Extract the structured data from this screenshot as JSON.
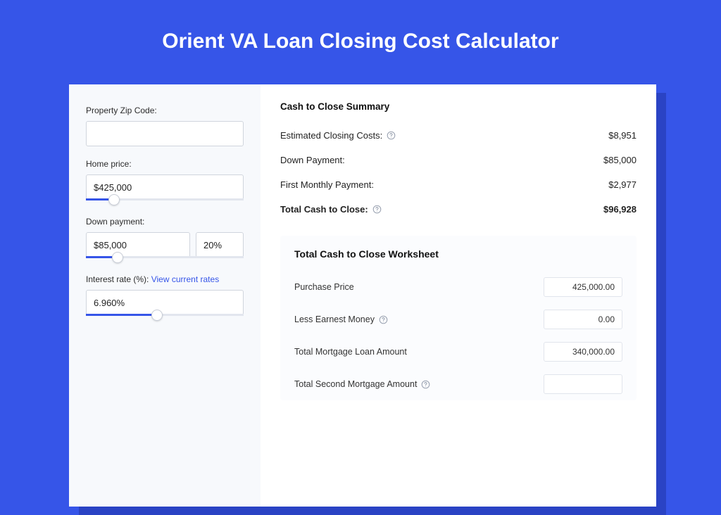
{
  "title": "Orient VA Loan Closing Cost Calculator",
  "colors": {
    "page_bg": "#3655e8",
    "panel_bg": "#ffffff",
    "left_bg": "#f7f9fc",
    "shadow_bg": "#2a43c4",
    "link": "#3655e8"
  },
  "left": {
    "zip_label": "Property Zip Code:",
    "zip_value": "",
    "home_price_label": "Home price:",
    "home_price_value": "$425,000",
    "home_price_slider": {
      "fill_pct": 18,
      "thumb_pct": 18
    },
    "down_payment_label": "Down payment:",
    "down_payment_value": "$85,000",
    "down_payment_pct": "20%",
    "down_payment_slider": {
      "fill_pct": 20,
      "thumb_pct": 20
    },
    "rate_label_prefix": "Interest rate (%): ",
    "rate_link": "View current rates",
    "rate_value": "6.960%",
    "rate_slider": {
      "fill_pct": 45,
      "thumb_pct": 45
    }
  },
  "summary": {
    "heading": "Cash to Close Summary",
    "rows": [
      {
        "label": "Estimated Closing Costs:",
        "help": true,
        "value": "$8,951",
        "bold": false
      },
      {
        "label": "Down Payment:",
        "help": false,
        "value": "$85,000",
        "bold": false
      },
      {
        "label": "First Monthly Payment:",
        "help": false,
        "value": "$2,977",
        "bold": false
      },
      {
        "label": "Total Cash to Close:",
        "help": true,
        "value": "$96,928",
        "bold": true
      }
    ]
  },
  "worksheet": {
    "heading": "Total Cash to Close Worksheet",
    "rows": [
      {
        "label": "Purchase Price",
        "help": false,
        "value": "425,000.00"
      },
      {
        "label": "Less Earnest Money",
        "help": true,
        "value": "0.00"
      },
      {
        "label": "Total Mortgage Loan Amount",
        "help": false,
        "value": "340,000.00"
      },
      {
        "label": "Total Second Mortgage Amount",
        "help": true,
        "value": ""
      }
    ]
  }
}
